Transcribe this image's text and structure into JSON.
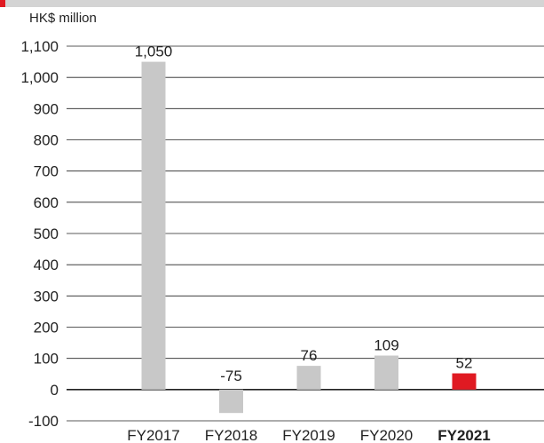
{
  "chart_data": {
    "type": "bar",
    "title": "",
    "unit_label": "HK$ million",
    "xlabel": "",
    "ylabel": "",
    "categories": [
      "FY2017",
      "FY2018",
      "FY2019",
      "FY2020",
      "FY2021"
    ],
    "values": [
      1050,
      -75,
      76,
      109,
      52
    ],
    "data_labels": [
      "1,050",
      "-75",
      "76",
      "109",
      "52"
    ],
    "highlight_category": "FY2021",
    "ylim": [
      -100,
      1100
    ],
    "yticks": [
      -100,
      0,
      100,
      200,
      300,
      400,
      500,
      600,
      700,
      800,
      900,
      1000,
      1100
    ],
    "ytick_labels": [
      "-100",
      "0",
      "100",
      "200",
      "300",
      "400",
      "500",
      "600",
      "700",
      "800",
      "900",
      "1,000",
      "1,100"
    ],
    "grid": true,
    "colors": {
      "bar": "#c8c8c8",
      "highlight": "#e01a22",
      "gridline": "#222222",
      "zero_line": "#222222"
    }
  }
}
